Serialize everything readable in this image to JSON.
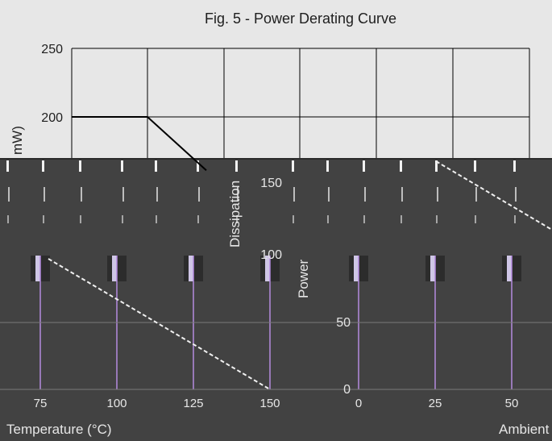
{
  "chart_data": {
    "type": "line",
    "title": "Fig. 5 - Power Derating Curve",
    "xlabel": "Ambient Temperature (°C)",
    "ylabel": "Power Dissipation (mW)",
    "xlim": [
      -50,
      150
    ],
    "ylim": [
      0,
      250
    ],
    "x_ticks_visible": [
      "75",
      "100",
      "125",
      "150",
      "0",
      "25",
      "50"
    ],
    "y_ticks_visible": [
      "250",
      "200",
      "150",
      "100",
      "50",
      "0"
    ],
    "grid": true,
    "series": [
      {
        "x": [
          -50,
          25,
          150
        ],
        "y": [
          200,
          200,
          0
        ]
      }
    ]
  },
  "axis_fragments": {
    "ylabel_unit": "mW)",
    "ylabel_part": "Dissipation",
    "ylabel_power": "Power",
    "xlabel_temp": "Temperature (°C)",
    "xlabel_ambient": "Ambient"
  },
  "colors": {
    "background": "#e7e7e7",
    "band": "#424242",
    "line": "#000000",
    "grid_top": "#000000",
    "grid_bottom": "#b58be0"
  }
}
